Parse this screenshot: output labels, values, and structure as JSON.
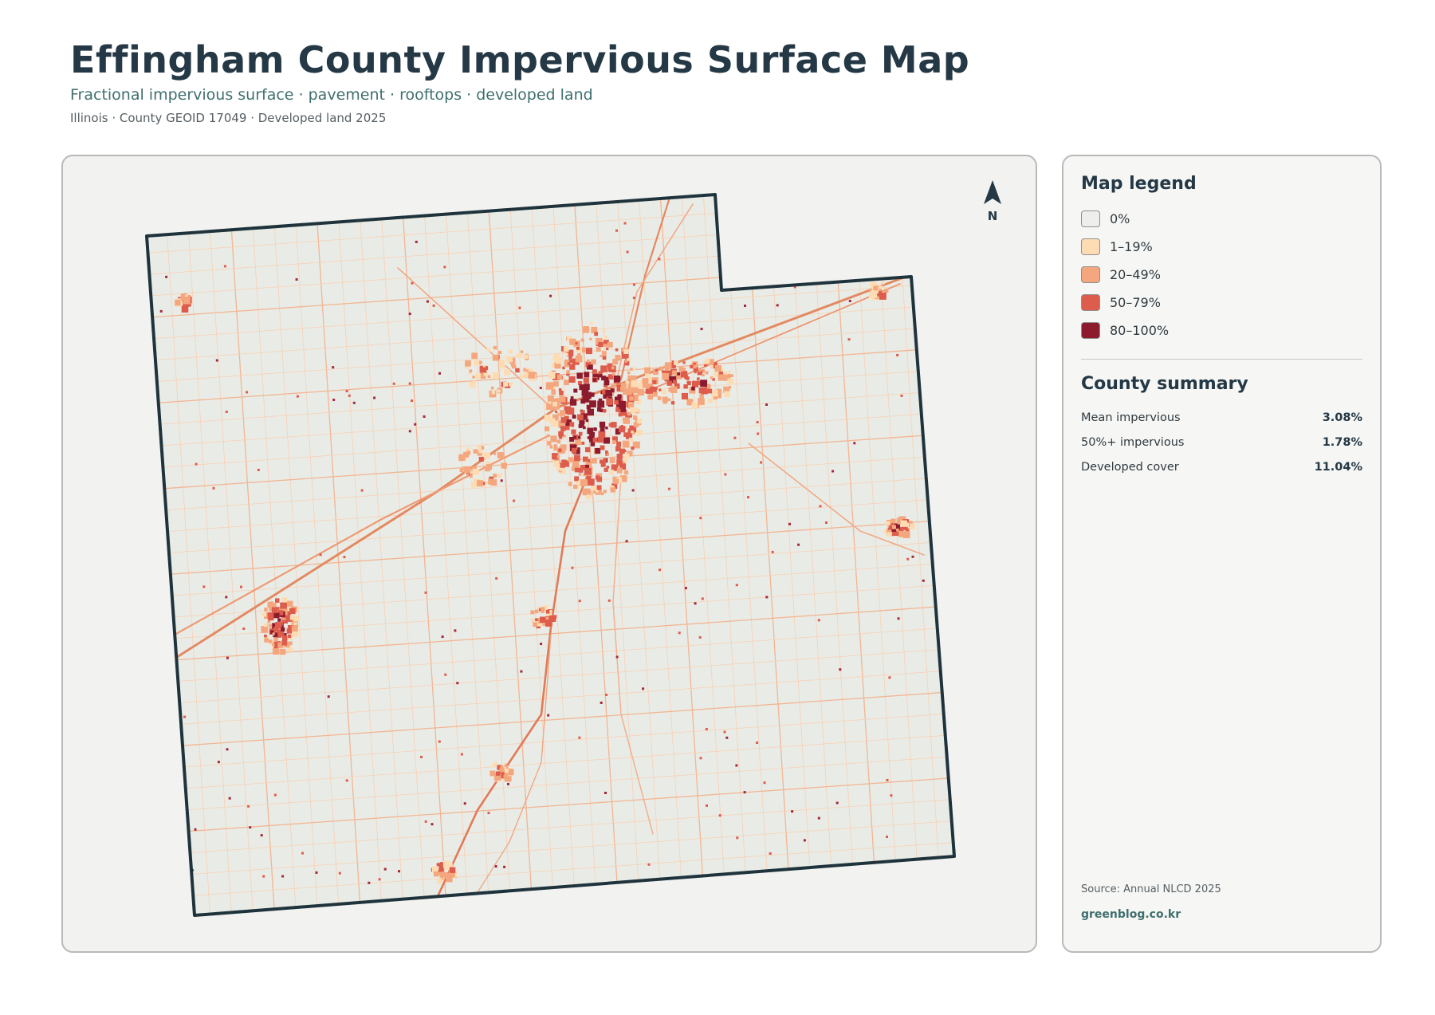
{
  "header": {
    "title": "Effingham County Impervious Surface Map",
    "subtitle": "Fractional impervious surface · pavement · rooftops · developed land",
    "meta": "Illinois · County GEOID 17049 · Developed land 2025"
  },
  "map": {
    "north_label": "N",
    "north_icon": "north-arrow-icon",
    "land_color": "#e9ece6",
    "outline_color": "#1f333d"
  },
  "legend": {
    "title": "Map legend",
    "items": [
      {
        "label": "0%",
        "color": "#eeeeec"
      },
      {
        "label": "1–19%",
        "color": "#fddcb4"
      },
      {
        "label": "20–49%",
        "color": "#f4a77e"
      },
      {
        "label": "50–79%",
        "color": "#dd5c4b"
      },
      {
        "label": "80–100%",
        "color": "#8c1b2e"
      }
    ]
  },
  "summary": {
    "title": "County summary",
    "rows": [
      {
        "label": "Mean impervious",
        "value": "3.08%"
      },
      {
        "label": "50%+ impervious",
        "value": "1.78%"
      },
      {
        "label": "Developed cover",
        "value": "11.04%"
      }
    ]
  },
  "footer": {
    "source": "Source: Annual NLCD 2025",
    "site": "greenblog.co.kr"
  }
}
